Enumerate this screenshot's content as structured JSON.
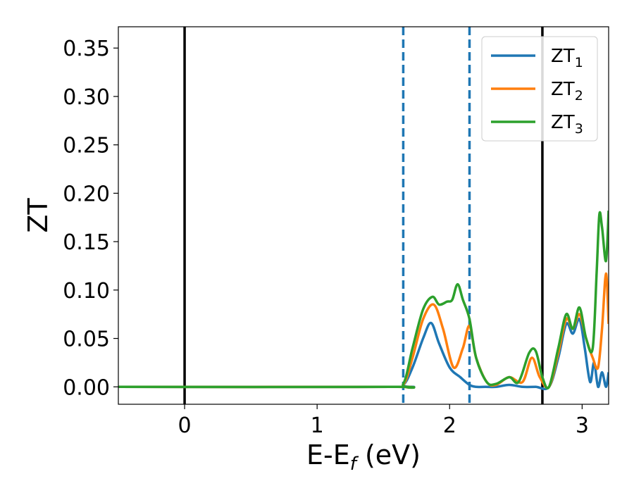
{
  "chart_data": {
    "type": "line",
    "xlabel": {
      "main": "E-E",
      "sub": "f",
      "unit": " (eV)"
    },
    "ylabel": "ZT",
    "xlim": [
      -0.5,
      3.2
    ],
    "ylim": [
      -0.018,
      0.372
    ],
    "x_ticks": [
      0,
      1,
      2,
      3
    ],
    "x_tick_labels": [
      "0",
      "1",
      "2",
      "3"
    ],
    "y_ticks": [
      0.0,
      0.05,
      0.1,
      0.15,
      0.2,
      0.25,
      0.3,
      0.35
    ],
    "y_tick_labels": [
      "0.00",
      "0.05",
      "0.10",
      "0.15",
      "0.20",
      "0.25",
      "0.30",
      "0.35"
    ],
    "grid": false,
    "legend_position": "top-right",
    "vertical_lines": [
      {
        "x": 0.0,
        "style": "solid",
        "color": "#000000"
      },
      {
        "x": 2.7,
        "style": "solid",
        "color": "#000000"
      },
      {
        "x": 1.65,
        "style": "dashed",
        "color": "#1f77b4"
      },
      {
        "x": 2.15,
        "style": "dashed",
        "color": "#1f77b4"
      }
    ],
    "series": [
      {
        "name": "ZT",
        "name_sub": "1",
        "color": "#1f77b4",
        "x": [
          -0.5,
          1.55,
          1.65,
          1.72,
          1.8,
          1.86,
          1.92,
          2.0,
          2.08,
          2.15,
          2.2,
          2.27,
          2.35,
          2.45,
          2.55,
          2.65,
          2.75,
          2.82,
          2.88,
          2.93,
          2.98,
          3.02,
          3.06,
          3.09,
          3.12,
          3.15,
          3.18,
          3.2
        ],
        "y": [
          0.0,
          0.0,
          0.002,
          0.02,
          0.05,
          0.066,
          0.045,
          0.02,
          0.01,
          0.002,
          0.0,
          0.0,
          0.0,
          0.002,
          0.0,
          0.0,
          0.0,
          0.03,
          0.065,
          0.055,
          0.07,
          0.04,
          0.005,
          0.025,
          0.0,
          0.015,
          0.0,
          0.015
        ]
      },
      {
        "name": "ZT",
        "name_sub": "2",
        "color": "#ff7f0e",
        "x": [
          -0.5,
          1.55,
          1.65,
          1.72,
          1.8,
          1.88,
          1.95,
          2.03,
          2.1,
          2.15,
          2.2,
          2.28,
          2.35,
          2.45,
          2.55,
          2.62,
          2.68,
          2.75,
          2.82,
          2.88,
          2.93,
          2.98,
          3.03,
          3.08,
          3.12,
          3.15,
          3.18,
          3.2
        ],
        "y": [
          0.0,
          0.0,
          0.002,
          0.03,
          0.07,
          0.085,
          0.06,
          0.02,
          0.04,
          0.063,
          0.03,
          0.005,
          0.002,
          0.01,
          0.005,
          0.03,
          0.01,
          0.0,
          0.035,
          0.07,
          0.06,
          0.075,
          0.05,
          0.03,
          0.02,
          0.06,
          0.117,
          0.065
        ]
      },
      {
        "name": "ZT",
        "name_sub": "3",
        "color": "#2ca02c",
        "x": [
          -0.5,
          1.55,
          1.65,
          1.72,
          1.8,
          1.87,
          1.92,
          1.98,
          2.02,
          2.06,
          2.1,
          2.15,
          2.2,
          2.28,
          2.35,
          2.45,
          2.52,
          2.6,
          2.65,
          2.7,
          2.75,
          2.82,
          2.88,
          2.93,
          2.98,
          3.03,
          3.08,
          3.11,
          3.13,
          3.15,
          3.18,
          3.2
        ],
        "y": [
          0.0,
          0.0,
          0.003,
          0.04,
          0.08,
          0.093,
          0.085,
          0.088,
          0.09,
          0.106,
          0.09,
          0.07,
          0.03,
          0.005,
          0.003,
          0.01,
          0.005,
          0.035,
          0.037,
          0.01,
          0.0,
          0.04,
          0.075,
          0.06,
          0.082,
          0.05,
          0.04,
          0.12,
          0.178,
          0.165,
          0.13,
          0.182
        ]
      }
    ]
  }
}
